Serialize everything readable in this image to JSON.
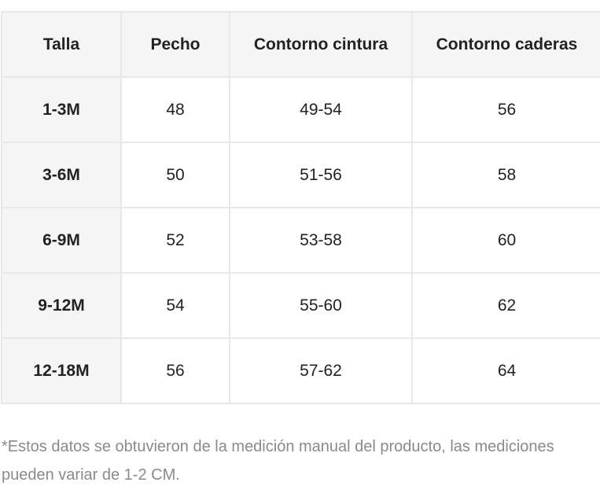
{
  "table": {
    "header": [
      "Talla",
      "Pecho",
      "Contorno cintura",
      "Contorno caderas"
    ],
    "rows": [
      [
        "1-3M",
        "48",
        "49-54",
        "56"
      ],
      [
        "3-6M",
        "50",
        "51-56",
        "58"
      ],
      [
        "6-9M",
        "52",
        "53-58",
        "60"
      ],
      [
        "9-12M",
        "54",
        "55-60",
        "62"
      ],
      [
        "12-18M",
        "56",
        "57-62",
        "64"
      ]
    ]
  },
  "note": "*Estos datos se obtuvieron de la medición manual del producto, las mediciones pueden variar de 1-2 CM."
}
